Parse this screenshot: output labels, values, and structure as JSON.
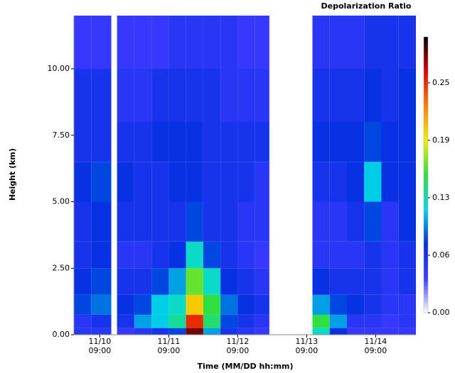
{
  "chart_data": {
    "type": "heatmap",
    "title": "Depolarization Ratio",
    "x_label": "Time (MM/DD hh:mm)",
    "y_label": "Height (km)",
    "xlim": [
      0,
      119
    ],
    "ylim": [
      0,
      12
    ],
    "xticks": [
      {
        "value": 9,
        "label": [
          "11/10",
          "09:00"
        ]
      },
      {
        "value": 33,
        "label": [
          "11/11",
          "09:00"
        ]
      },
      {
        "value": 57,
        "label": [
          "11/12",
          "09:00"
        ]
      },
      {
        "value": 81,
        "label": [
          "11/13",
          "09:00"
        ]
      },
      {
        "value": 105,
        "label": [
          "11/14",
          "09:00"
        ]
      }
    ],
    "yticks": [
      {
        "value": 0,
        "label": "0.00"
      },
      {
        "value": 2.5,
        "label": "2.50"
      },
      {
        "value": 5,
        "label": "5.00"
      },
      {
        "value": 7.5,
        "label": "7.50"
      },
      {
        "value": 10,
        "label": "10.00"
      }
    ],
    "clim": [
      0,
      0.3
    ],
    "cticks": [
      {
        "value": 0,
        "label": "0.00"
      },
      {
        "value": 0.0625,
        "label": "0.06"
      },
      {
        "value": 0.125,
        "label": "0.13"
      },
      {
        "value": 0.1875,
        "label": "0.19"
      },
      {
        "value": 0.25,
        "label": "0.25"
      }
    ],
    "colormap": [
      "#ffffff",
      "#3a3aff",
      "#0030e0",
      "#00d8e8",
      "#30e040",
      "#f0f000",
      "#ff8000",
      "#e00000",
      "#000000"
    ],
    "x_edges": [
      0,
      6,
      13,
      15,
      21,
      27,
      33,
      39,
      45,
      51,
      57,
      63,
      68,
      83,
      89,
      95,
      101,
      107,
      113,
      119
    ],
    "y_edges": [
      0,
      0.25,
      0.75,
      1.5,
      2.5,
      3.5,
      5,
      6.5,
      8,
      10,
      12
    ],
    "values": [
      [
        0.05,
        0.05,
        0.08,
        0.07,
        0.06,
        0.06,
        0.07,
        0.06,
        0.06,
        0.04
      ],
      [
        0.05,
        0.06,
        0.09,
        0.08,
        0.07,
        0.07,
        0.08,
        0.06,
        0.06,
        0.04
      ],
      null,
      [
        0.04,
        0.06,
        0.07,
        0.06,
        0.05,
        0.06,
        0.07,
        0.06,
        0.05,
        0.04
      ],
      [
        0.05,
        0.1,
        0.08,
        0.06,
        0.05,
        0.06,
        0.06,
        0.06,
        0.05,
        0.04
      ],
      [
        0.06,
        0.11,
        0.11,
        0.08,
        0.06,
        0.06,
        0.06,
        0.07,
        0.06,
        0.04
      ],
      [
        0.08,
        0.13,
        0.12,
        0.1,
        0.07,
        0.06,
        0.07,
        0.07,
        0.06,
        0.05
      ],
      [
        0.28,
        0.25,
        0.2,
        0.16,
        0.12,
        0.08,
        0.07,
        0.07,
        0.06,
        0.05
      ],
      [
        0.1,
        0.14,
        0.15,
        0.12,
        0.08,
        0.06,
        0.06,
        0.06,
        0.06,
        0.05
      ],
      [
        0.06,
        0.08,
        0.09,
        0.07,
        0.06,
        0.06,
        0.06,
        0.06,
        0.05,
        0.05
      ],
      [
        0.05,
        0.06,
        0.07,
        0.06,
        0.05,
        0.05,
        0.06,
        0.06,
        0.05,
        0.04
      ],
      [
        0.04,
        0.05,
        0.06,
        0.05,
        0.04,
        0.05,
        0.05,
        0.06,
        0.05,
        0.04
      ],
      null,
      [
        0.12,
        0.15,
        0.1,
        0.07,
        0.05,
        0.05,
        0.06,
        0.07,
        0.06,
        0.05
      ],
      [
        0.07,
        0.1,
        0.08,
        0.06,
        0.05,
        0.05,
        0.06,
        0.07,
        0.06,
        0.05
      ],
      [
        0.04,
        0.05,
        0.07,
        0.06,
        0.05,
        0.06,
        0.07,
        0.07,
        0.06,
        0.05
      ],
      [
        0.04,
        0.05,
        0.06,
        0.06,
        0.06,
        0.08,
        0.11,
        0.08,
        0.07,
        0.06
      ],
      [
        0.04,
        0.04,
        0.05,
        0.05,
        0.05,
        0.05,
        0.07,
        0.07,
        0.06,
        0.06
      ],
      [
        0.04,
        0.05,
        0.05,
        0.06,
        0.06,
        0.07,
        0.07,
        0.07,
        0.07,
        0.06
      ]
    ]
  }
}
